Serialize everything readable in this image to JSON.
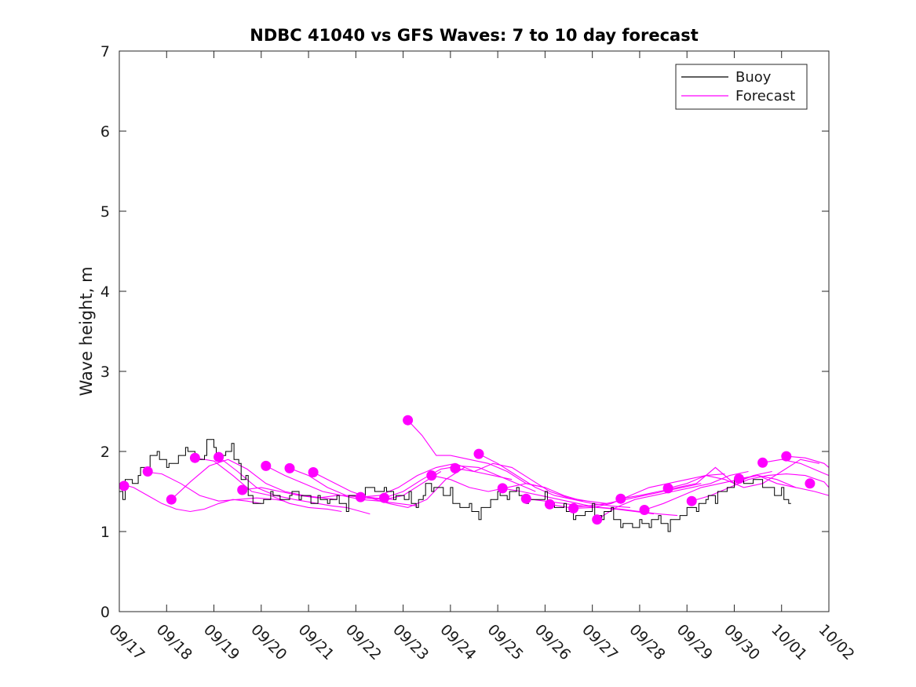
{
  "chart_data": {
    "type": "line",
    "title": "NDBC 41040 vs GFS Waves: 7 to 10 day forecast",
    "xlabel": "",
    "ylabel": "Wave height, m",
    "ylim": [
      0,
      7
    ],
    "yticks": [
      0,
      1,
      2,
      3,
      4,
      5,
      6,
      7
    ],
    "xlim": [
      0,
      15
    ],
    "xtick_labels": [
      "09/17",
      "09/18",
      "09/19",
      "09/20",
      "09/21",
      "09/22",
      "09/23",
      "09/24",
      "09/25",
      "09/26",
      "09/27",
      "09/28",
      "09/29",
      "09/30",
      "10/01",
      "10/02"
    ],
    "legend": {
      "position": "top-right",
      "entries": [
        "Buoy",
        "Forecast"
      ]
    },
    "colors": {
      "buoy": "#000000",
      "forecast": "#ff00ff"
    },
    "buoy": {
      "name": "Buoy",
      "x": [
        0.0,
        0.15,
        0.3,
        0.5,
        0.7,
        0.9,
        1.1,
        1.3,
        1.5,
        1.7,
        1.9,
        2.1,
        2.3,
        2.45,
        2.6,
        2.75,
        2.9,
        3.1,
        3.3,
        3.5,
        3.7,
        3.9,
        4.1,
        4.3,
        4.5,
        4.7,
        4.9,
        5.1,
        5.3,
        5.5,
        5.7,
        5.9,
        6.05,
        6.2,
        6.35,
        6.5,
        6.7,
        6.9,
        7.1,
        7.3,
        7.5,
        7.7,
        7.9,
        8.1,
        8.3,
        8.5,
        8.7,
        8.9,
        9.1,
        9.3,
        9.5,
        9.7,
        9.9,
        10.1,
        10.3,
        10.5,
        10.7,
        10.9,
        11.1,
        11.3,
        11.5,
        11.7,
        11.9,
        12.1,
        12.3,
        12.5,
        12.7,
        12.9,
        13.1,
        13.3,
        13.5,
        13.7,
        13.9,
        14.1,
        14.2
      ],
      "y": [
        1.5,
        1.65,
        1.6,
        1.8,
        1.95,
        1.9,
        1.85,
        1.95,
        2.0,
        1.9,
        2.15,
        1.95,
        2.0,
        1.9,
        1.65,
        1.45,
        1.35,
        1.4,
        1.45,
        1.4,
        1.5,
        1.45,
        1.35,
        1.4,
        1.4,
        1.35,
        1.45,
        1.45,
        1.55,
        1.5,
        1.5,
        1.45,
        1.4,
        1.35,
        1.4,
        1.6,
        1.55,
        1.45,
        1.35,
        1.3,
        1.25,
        1.3,
        1.4,
        1.45,
        1.5,
        1.45,
        1.4,
        1.4,
        1.35,
        1.3,
        1.25,
        1.2,
        1.25,
        1.2,
        1.25,
        1.15,
        1.1,
        1.05,
        1.1,
        1.15,
        1.1,
        1.15,
        1.2,
        1.3,
        1.35,
        1.45,
        1.5,
        1.55,
        1.65,
        1.6,
        1.65,
        1.55,
        1.45,
        1.4,
        1.35
      ]
    },
    "forecast_series": [
      {
        "name": "Forecast",
        "x": [
          0.0,
          0.3,
          0.6,
          0.9,
          1.2,
          1.5,
          1.8,
          2.1,
          2.4,
          2.7,
          3.0
        ],
        "y": [
          1.6,
          1.55,
          1.45,
          1.35,
          1.28,
          1.25,
          1.28,
          1.35,
          1.4,
          1.38,
          1.35
        ]
      },
      {
        "name": "Forecast",
        "x": [
          0.5,
          0.9,
          1.3,
          1.7,
          2.1,
          2.5,
          2.9,
          3.3,
          3.5
        ],
        "y": [
          1.75,
          1.72,
          1.6,
          1.45,
          1.38,
          1.4,
          1.42,
          1.4,
          1.38
        ]
      },
      {
        "name": "Forecast",
        "x": [
          1.1,
          1.5,
          1.9,
          2.3,
          2.7,
          3.1,
          3.5,
          3.9,
          4.3,
          4.6
        ],
        "y": [
          1.4,
          1.62,
          1.82,
          1.9,
          1.78,
          1.6,
          1.5,
          1.45,
          1.42,
          1.4
        ]
      },
      {
        "name": "Forecast",
        "x": [
          1.6,
          2.0,
          2.4,
          2.8,
          3.2,
          3.6,
          4.0,
          4.4,
          4.7
        ],
        "y": [
          1.92,
          1.88,
          1.7,
          1.5,
          1.45,
          1.35,
          1.3,
          1.28,
          1.25
        ]
      },
      {
        "name": "Forecast",
        "x": [
          2.1,
          2.5,
          2.9,
          3.3,
          3.7,
          4.1,
          4.5,
          4.8,
          5.3
        ],
        "y": [
          1.93,
          1.75,
          1.55,
          1.45,
          1.4,
          1.36,
          1.32,
          1.3,
          1.22
        ]
      },
      {
        "name": "Forecast",
        "x": [
          2.6,
          3.0,
          3.4,
          3.8,
          4.2,
          4.6,
          5.0,
          5.4,
          5.8
        ],
        "y": [
          1.52,
          1.55,
          1.5,
          1.45,
          1.42,
          1.45,
          1.45,
          1.42,
          1.4
        ]
      },
      {
        "name": "Forecast",
        "x": [
          3.1,
          3.5,
          3.9,
          4.3,
          4.7,
          5.1,
          5.5,
          5.9,
          6.3
        ],
        "y": [
          1.82,
          1.7,
          1.6,
          1.5,
          1.45,
          1.4,
          1.38,
          1.35,
          1.32
        ]
      },
      {
        "name": "Forecast",
        "x": [
          3.6,
          4.0,
          4.4,
          4.8,
          5.2,
          5.6,
          6.0,
          6.4,
          6.8
        ],
        "y": [
          1.79,
          1.7,
          1.55,
          1.45,
          1.42,
          1.4,
          1.45,
          1.6,
          1.75
        ]
      },
      {
        "name": "Forecast",
        "x": [
          4.1,
          4.5,
          4.9,
          5.3,
          5.7,
          6.1,
          6.5,
          6.9,
          7.3
        ],
        "y": [
          1.74,
          1.62,
          1.5,
          1.42,
          1.35,
          1.3,
          1.4,
          1.65,
          1.8
        ]
      },
      {
        "name": "Forecast",
        "x": [
          5.1,
          5.5,
          5.9,
          6.3,
          6.7,
          7.1,
          7.5,
          7.9,
          8.3
        ],
        "y": [
          1.43,
          1.45,
          1.55,
          1.7,
          1.8,
          1.85,
          1.75,
          1.7,
          1.65
        ]
      },
      {
        "name": "Forecast",
        "x": [
          5.6,
          6.0,
          6.4,
          6.8,
          7.2,
          7.6,
          8.0,
          8.4,
          8.8
        ],
        "y": [
          1.42,
          1.5,
          1.65,
          1.78,
          1.82,
          1.8,
          1.7,
          1.6,
          1.5
        ]
      },
      {
        "name": "Forecast",
        "x": [
          6.1,
          6.4,
          6.7,
          7.0,
          7.4,
          7.8,
          8.2,
          8.6,
          9.0
        ],
        "y": [
          2.39,
          2.2,
          1.95,
          1.95,
          1.9,
          1.85,
          1.75,
          1.6,
          1.55
        ]
      },
      {
        "name": "Forecast",
        "x": [
          6.6,
          7.0,
          7.4,
          7.8,
          8.2,
          8.6,
          9.0,
          9.4,
          9.8
        ],
        "y": [
          1.7,
          1.65,
          1.55,
          1.5,
          1.55,
          1.6,
          1.55,
          1.45,
          1.38
        ]
      },
      {
        "name": "Forecast",
        "x": [
          7.1,
          7.5,
          7.9,
          8.3,
          8.7,
          9.1,
          9.5,
          9.9,
          10.3
        ],
        "y": [
          1.79,
          1.75,
          1.85,
          1.8,
          1.65,
          1.5,
          1.42,
          1.38,
          1.35
        ]
      },
      {
        "name": "Forecast",
        "x": [
          7.6,
          8.0,
          8.4,
          8.8,
          9.2,
          9.6,
          10.0,
          10.4,
          10.8
        ],
        "y": [
          1.97,
          1.85,
          1.7,
          1.55,
          1.45,
          1.4,
          1.35,
          1.32,
          1.3
        ]
      },
      {
        "name": "Forecast",
        "x": [
          8.1,
          8.5,
          8.9,
          9.3,
          9.7,
          10.1,
          10.5,
          10.9,
          11.3
        ],
        "y": [
          1.54,
          1.5,
          1.45,
          1.4,
          1.35,
          1.3,
          1.28,
          1.25,
          1.22
        ]
      },
      {
        "name": "Forecast",
        "x": [
          8.6,
          9.0,
          9.4,
          9.8,
          10.2,
          10.6,
          11.0,
          11.4,
          11.8
        ],
        "y": [
          1.41,
          1.38,
          1.35,
          1.32,
          1.3,
          1.28,
          1.25,
          1.22,
          1.2
        ]
      },
      {
        "name": "Forecast",
        "x": [
          9.1,
          9.5,
          9.9,
          10.3,
          10.7,
          11.1,
          11.5,
          11.9,
          12.3
        ],
        "y": [
          1.34,
          1.3,
          1.32,
          1.35,
          1.4,
          1.45,
          1.5,
          1.55,
          1.6
        ]
      },
      {
        "name": "Forecast",
        "x": [
          9.6,
          10.0,
          10.4,
          10.8,
          11.2,
          11.6,
          12.0,
          12.4,
          12.8
        ],
        "y": [
          1.29,
          1.3,
          1.35,
          1.45,
          1.55,
          1.6,
          1.65,
          1.7,
          1.72
        ]
      },
      {
        "name": "Forecast",
        "x": [
          10.1,
          10.5,
          10.9,
          11.3,
          11.7,
          12.1,
          12.5,
          12.9,
          13.3
        ],
        "y": [
          1.15,
          1.3,
          1.4,
          1.45,
          1.5,
          1.55,
          1.6,
          1.7,
          1.75
        ]
      },
      {
        "name": "Forecast",
        "x": [
          10.6,
          11.0,
          11.4,
          11.8,
          12.2,
          12.6,
          13.0,
          13.4,
          13.8
        ],
        "y": [
          1.41,
          1.45,
          1.5,
          1.55,
          1.6,
          1.8,
          1.6,
          1.7,
          1.75
        ]
      },
      {
        "name": "Forecast",
        "x": [
          11.1,
          11.5,
          11.9,
          12.3,
          12.7,
          13.1,
          13.5,
          13.9,
          14.3
        ],
        "y": [
          1.27,
          1.35,
          1.45,
          1.55,
          1.6,
          1.65,
          1.7,
          1.65,
          1.55
        ]
      },
      {
        "name": "Forecast",
        "x": [
          11.6,
          12.0,
          12.4,
          12.8,
          13.2,
          13.6,
          14.0,
          14.4,
          14.8
        ],
        "y": [
          1.54,
          1.6,
          1.7,
          1.65,
          1.55,
          1.6,
          1.75,
          1.9,
          1.85
        ]
      },
      {
        "name": "Forecast",
        "x": [
          12.1,
          12.5,
          12.9,
          13.3,
          13.7,
          14.1,
          14.5,
          14.9,
          15.0
        ],
        "y": [
          1.38,
          1.45,
          1.55,
          1.65,
          1.7,
          1.72,
          1.7,
          1.62,
          1.55
        ]
      },
      {
        "name": "Forecast",
        "x": [
          13.1,
          13.5,
          13.9,
          14.3,
          14.7,
          15.0
        ],
        "y": [
          1.66,
          1.7,
          1.6,
          1.55,
          1.5,
          1.45
        ]
      },
      {
        "name": "Forecast",
        "x": [
          13.6,
          14.0,
          14.4,
          14.8,
          15.0
        ],
        "y": [
          1.86,
          1.9,
          1.85,
          1.75,
          1.7
        ]
      },
      {
        "name": "Forecast",
        "x": [
          14.1,
          14.5,
          14.9,
          15.0
        ],
        "y": [
          1.94,
          1.92,
          1.85,
          1.8
        ]
      }
    ],
    "forecast_markers": {
      "x": [
        0.1,
        0.6,
        1.1,
        1.6,
        2.1,
        2.6,
        3.1,
        3.6,
        4.1,
        5.1,
        5.6,
        6.1,
        6.6,
        7.1,
        7.6,
        8.1,
        8.6,
        9.1,
        9.6,
        10.1,
        10.6,
        11.1,
        11.6,
        12.1,
        13.1,
        13.6,
        14.1,
        14.6
      ],
      "y": [
        1.57,
        1.75,
        1.4,
        1.92,
        1.93,
        1.52,
        1.82,
        1.79,
        1.74,
        1.43,
        1.42,
        2.39,
        1.7,
        1.79,
        1.97,
        1.54,
        1.41,
        1.34,
        1.29,
        1.15,
        1.41,
        1.27,
        1.54,
        1.38,
        1.66,
        1.86,
        1.94,
        1.6
      ]
    }
  }
}
